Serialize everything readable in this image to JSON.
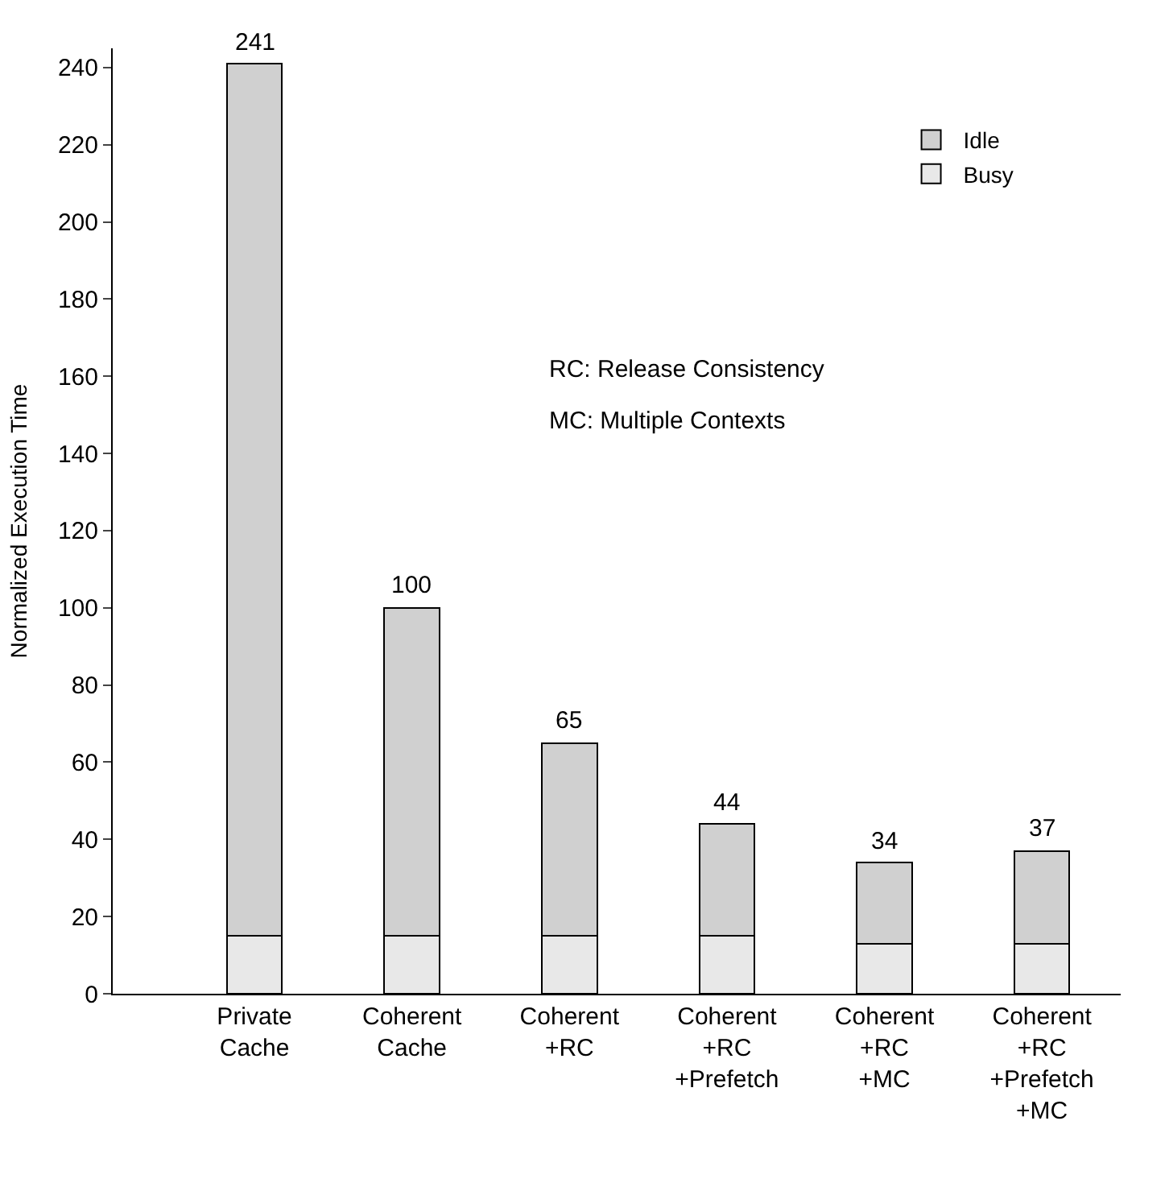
{
  "chart_data": {
    "type": "bar",
    "stacked": true,
    "ylabel": "Normalized Execution Time",
    "categories": [
      "Private\nCache",
      "Coherent\nCache",
      "Coherent\n+RC",
      "Coherent\n+RC\n+Prefetch",
      "Coherent\n+RC\n+MC",
      "Coherent\n+RC\n+Prefetch\n+MC"
    ],
    "series": [
      {
        "name": "Busy",
        "color": "#e8e8e8",
        "values": [
          15,
          15,
          15,
          15,
          13,
          13
        ]
      },
      {
        "name": "Idle",
        "color": "#d0d0d0",
        "values": [
          226,
          85,
          50,
          29,
          21,
          24
        ]
      }
    ],
    "totals": [
      "241",
      "100",
      "65",
      "44",
      "34",
      "37"
    ],
    "ylim": [
      0,
      245
    ],
    "yticks": [
      0,
      20,
      40,
      60,
      80,
      100,
      120,
      140,
      160,
      180,
      200,
      220,
      240
    ],
    "annotations": [
      "RC: Release Consistency",
      "MC: Multiple Contexts"
    ],
    "legend": "top right"
  }
}
